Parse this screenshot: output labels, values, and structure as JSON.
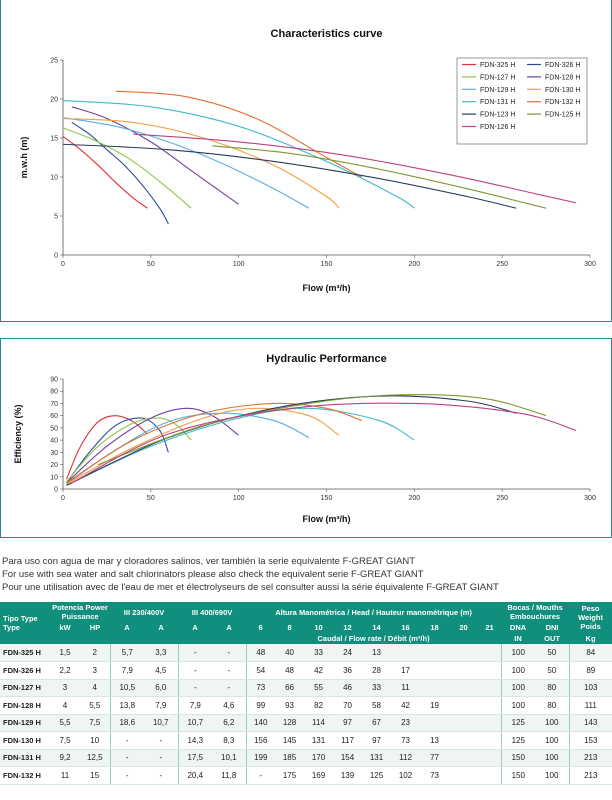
{
  "colors": {
    "FDN-325 H": "#e0303a",
    "FDN-326 H": "#2a4a9a",
    "FDN-127 H": "#8cc84a",
    "FDN-128 H": "#7040a0",
    "FDN-129 H": "#5aaee0",
    "FDN-130 H": "#f0a040",
    "FDN-131 H": "#40b8c8",
    "FDN-132 H": "#e07030",
    "FDN-123 H": "#2a3a60",
    "FDN-125 H": "#7a9a30",
    "FDN-126 H": "#c04080",
    "header": "#0f8f7c"
  },
  "chart_data": [
    {
      "type": "line",
      "title": "Characteristics curve",
      "xlabel": "Flow (m³/h)",
      "ylabel": "m.w.h (m)",
      "xlim": [
        0,
        300
      ],
      "ylim": [
        0,
        25
      ],
      "xticks": [
        "0",
        "50",
        "100",
        "150",
        "200",
        "250",
        "300"
      ],
      "yticks": [
        "0",
        "5",
        "10",
        "15",
        "20",
        "25"
      ],
      "grid": false,
      "legend": "top-right",
      "series": [
        {
          "name": "FDN-325 H",
          "x": [
            0,
            10,
            20,
            30,
            40,
            48
          ],
          "y": [
            15.2,
            13.5,
            11.5,
            9.3,
            7.3,
            6.0
          ]
        },
        {
          "name": "FDN-326 H",
          "x": [
            5,
            15,
            25,
            35,
            45,
            55,
            60
          ],
          "y": [
            17.0,
            15.5,
            13.5,
            11.5,
            9.0,
            6.0,
            4.0
          ]
        },
        {
          "name": "FDN-127 H",
          "x": [
            0,
            20,
            40,
            60,
            73
          ],
          "y": [
            16.3,
            14.5,
            12.0,
            8.5,
            6.0
          ]
        },
        {
          "name": "FDN-128 H",
          "x": [
            5,
            25,
            50,
            75,
            100
          ],
          "y": [
            19.0,
            17.5,
            14.5,
            10.5,
            6.5
          ]
        },
        {
          "name": "FDN-129 H",
          "x": [
            0,
            30,
            60,
            90,
            120,
            140
          ],
          "y": [
            17.6,
            16.5,
            14.5,
            11.8,
            8.5,
            6.0
          ]
        },
        {
          "name": "FDN-130 H",
          "x": [
            0,
            40,
            80,
            120,
            150,
            157
          ],
          "y": [
            17.5,
            17.0,
            15.0,
            11.5,
            7.5,
            6.0
          ]
        },
        {
          "name": "FDN-131 H",
          "x": [
            0,
            50,
            100,
            150,
            190,
            200
          ],
          "y": [
            19.8,
            19.0,
            16.5,
            12.0,
            7.5,
            6.0
          ]
        },
        {
          "name": "FDN-132 H",
          "x": [
            30,
            70,
            110,
            150,
            170
          ],
          "y": [
            21.0,
            20.3,
            17.5,
            12.5,
            10.0
          ]
        },
        {
          "name": "FDN-123 H",
          "x": [
            0,
            60,
            120,
            180,
            230,
            258
          ],
          "y": [
            14.2,
            13.5,
            12.0,
            9.8,
            7.5,
            6.0
          ]
        },
        {
          "name": "FDN-125 H",
          "x": [
            85,
            130,
            180,
            230,
            275
          ],
          "y": [
            14.0,
            13.0,
            11.0,
            8.5,
            6.0
          ]
        },
        {
          "name": "FDN-126 H",
          "x": [
            40,
            100,
            160,
            220,
            270,
            292
          ],
          "y": [
            15.5,
            14.5,
            12.8,
            10.3,
            7.8,
            6.7
          ]
        }
      ]
    },
    {
      "type": "line",
      "title": "Hydraulic Performance",
      "xlabel": "Flow (m³/h)",
      "ylabel": "Efficiency (%)",
      "xlim": [
        0,
        300
      ],
      "ylim": [
        0,
        90
      ],
      "xticks": [
        "0",
        "50",
        "100",
        "150",
        "200",
        "250",
        "300"
      ],
      "yticks": [
        "0",
        "10",
        "20",
        "30",
        "40",
        "50",
        "60",
        "70",
        "80",
        "90"
      ],
      "grid": false,
      "series": [
        {
          "name": "FDN-325 H",
          "x": [
            2,
            10,
            20,
            30,
            40,
            48
          ],
          "y": [
            8,
            35,
            55,
            60,
            55,
            45
          ]
        },
        {
          "name": "FDN-326 H",
          "x": [
            2,
            15,
            30,
            45,
            55,
            60
          ],
          "y": [
            5,
            30,
            52,
            58,
            48,
            30
          ]
        },
        {
          "name": "FDN-127 H",
          "x": [
            2,
            20,
            40,
            55,
            65,
            73
          ],
          "y": [
            6,
            35,
            54,
            58,
            52,
            40
          ]
        },
        {
          "name": "FDN-128 H",
          "x": [
            2,
            25,
            50,
            70,
            85,
            100
          ],
          "y": [
            5,
            35,
            58,
            66,
            60,
            44
          ]
        },
        {
          "name": "FDN-129 H",
          "x": [
            2,
            30,
            60,
            90,
            120,
            140
          ],
          "y": [
            4,
            32,
            55,
            62,
            56,
            42
          ]
        },
        {
          "name": "FDN-130 H",
          "x": [
            2,
            40,
            80,
            110,
            140,
            157
          ],
          "y": [
            4,
            34,
            58,
            66,
            60,
            44
          ]
        },
        {
          "name": "FDN-131 H",
          "x": [
            2,
            50,
            100,
            140,
            180,
            200
          ],
          "y": [
            3,
            35,
            58,
            66,
            56,
            40
          ]
        },
        {
          "name": "FDN-132 H",
          "x": [
            2,
            40,
            80,
            120,
            150,
            170
          ],
          "y": [
            5,
            40,
            62,
            70,
            66,
            56
          ]
        },
        {
          "name": "FDN-123 H",
          "x": [
            2,
            60,
            120,
            180,
            230,
            258
          ],
          "y": [
            3,
            42,
            66,
            76,
            72,
            62
          ]
        },
        {
          "name": "FDN-125 H",
          "x": [
            20,
            80,
            140,
            190,
            240,
            275
          ],
          "y": [
            20,
            52,
            70,
            77,
            74,
            60
          ]
        },
        {
          "name": "FDN-126 H",
          "x": [
            5,
            60,
            130,
            200,
            260,
            292
          ],
          "y": [
            5,
            45,
            66,
            70,
            62,
            48
          ]
        }
      ]
    }
  ],
  "notes": [
    "Para uso con agua de mar y cloradores salinos, ver también la serie equivalente F-GREAT GIANT",
    "For use with sea water and salt chlorinators please also check the equivalent serie F-GREAT GIANT",
    "Pour une utilisation avec de l'eau de mer et électrolyseurs de sel consulter aussi la série équivalente F-GREAT GIANT"
  ],
  "table": {
    "headers": {
      "model": "Tipo Type Type",
      "power": "Potencia Power Puissance",
      "kw": "kW",
      "hp": "HP",
      "iii230": "III 230/400V",
      "iii400": "III 400/690V",
      "amp": "A",
      "head_title": "Altura Manométrica / Head / Hauteur manométrique (m)",
      "head_cols": [
        "6",
        "8",
        "10",
        "12",
        "14",
        "16",
        "18",
        "20",
        "21"
      ],
      "flow_title": "Caudal / Flow rate / Débit (m³/h)",
      "mouths": "Bocas / Mouths Embouchures",
      "dna": "DNA",
      "dni": "DNI",
      "in": "IN",
      "out": "OUT",
      "weight": "Peso Weight Poids",
      "kg": "Kg"
    },
    "rows": [
      {
        "model": "FDN-325 H",
        "kw": "1,5",
        "hp": "2",
        "a230": "5,7",
        "a400": "3,3",
        "b230": "-",
        "b400": "-",
        "h": [
          "48",
          "40",
          "33",
          "24",
          "13",
          "",
          "",
          "",
          ""
        ],
        "dna": "100",
        "dni": "50",
        "kg": "84"
      },
      {
        "model": "FDN-326 H",
        "kw": "2,2",
        "hp": "3",
        "a230": "7,9",
        "a400": "4,5",
        "b230": "-",
        "b400": "-",
        "h": [
          "54",
          "48",
          "42",
          "36",
          "28",
          "17",
          "",
          "",
          ""
        ],
        "dna": "100",
        "dni": "50",
        "kg": "89"
      },
      {
        "model": "FDN-127 H",
        "kw": "3",
        "hp": "4",
        "a230": "10,5",
        "a400": "6,0",
        "b230": "-",
        "b400": "-",
        "h": [
          "73",
          "66",
          "55",
          "46",
          "33",
          "11",
          "",
          "",
          ""
        ],
        "dna": "100",
        "dni": "80",
        "kg": "103"
      },
      {
        "model": "FDN-128 H",
        "kw": "4",
        "hp": "5,5",
        "a230": "13,8",
        "a400": "7,9",
        "b230": "7,9",
        "b400": "4,6",
        "h": [
          "99",
          "93",
          "82",
          "70",
          "58",
          "42",
          "19",
          "",
          ""
        ],
        "dna": "100",
        "dni": "80",
        "kg": "111"
      },
      {
        "model": "FDN-129 H",
        "kw": "5,5",
        "hp": "7,5",
        "a230": "18,6",
        "a400": "10,7",
        "b230": "10,7",
        "b400": "6,2",
        "h": [
          "140",
          "128",
          "114",
          "97",
          "67",
          "23",
          "",
          "",
          ""
        ],
        "dna": "125",
        "dni": "100",
        "kg": "143"
      },
      {
        "model": "FDN-130 H",
        "kw": "7,5",
        "hp": "10",
        "a230": "-",
        "a400": "-",
        "b230": "14,3",
        "b400": "8,3",
        "h": [
          "156",
          "145",
          "131",
          "117",
          "97",
          "73",
          "13",
          "",
          ""
        ],
        "dna": "125",
        "dni": "100",
        "kg": "153"
      },
      {
        "model": "FDN-131 H",
        "kw": "9,2",
        "hp": "12,5",
        "a230": "-",
        "a400": "-",
        "b230": "17,5",
        "b400": "10,1",
        "h": [
          "199",
          "185",
          "170",
          "154",
          "131",
          "112",
          "77",
          "",
          ""
        ],
        "dna": "150",
        "dni": "100",
        "kg": "213"
      },
      {
        "model": "FDN-132 H",
        "kw": "11",
        "hp": "15",
        "a230": "-",
        "a400": "-",
        "b230": "20,4",
        "b400": "11,8",
        "h": [
          "-",
          "175",
          "169",
          "139",
          "125",
          "102",
          "73",
          "",
          ""
        ],
        "dna": "150",
        "dni": "100",
        "kg": "213"
      }
    ]
  }
}
